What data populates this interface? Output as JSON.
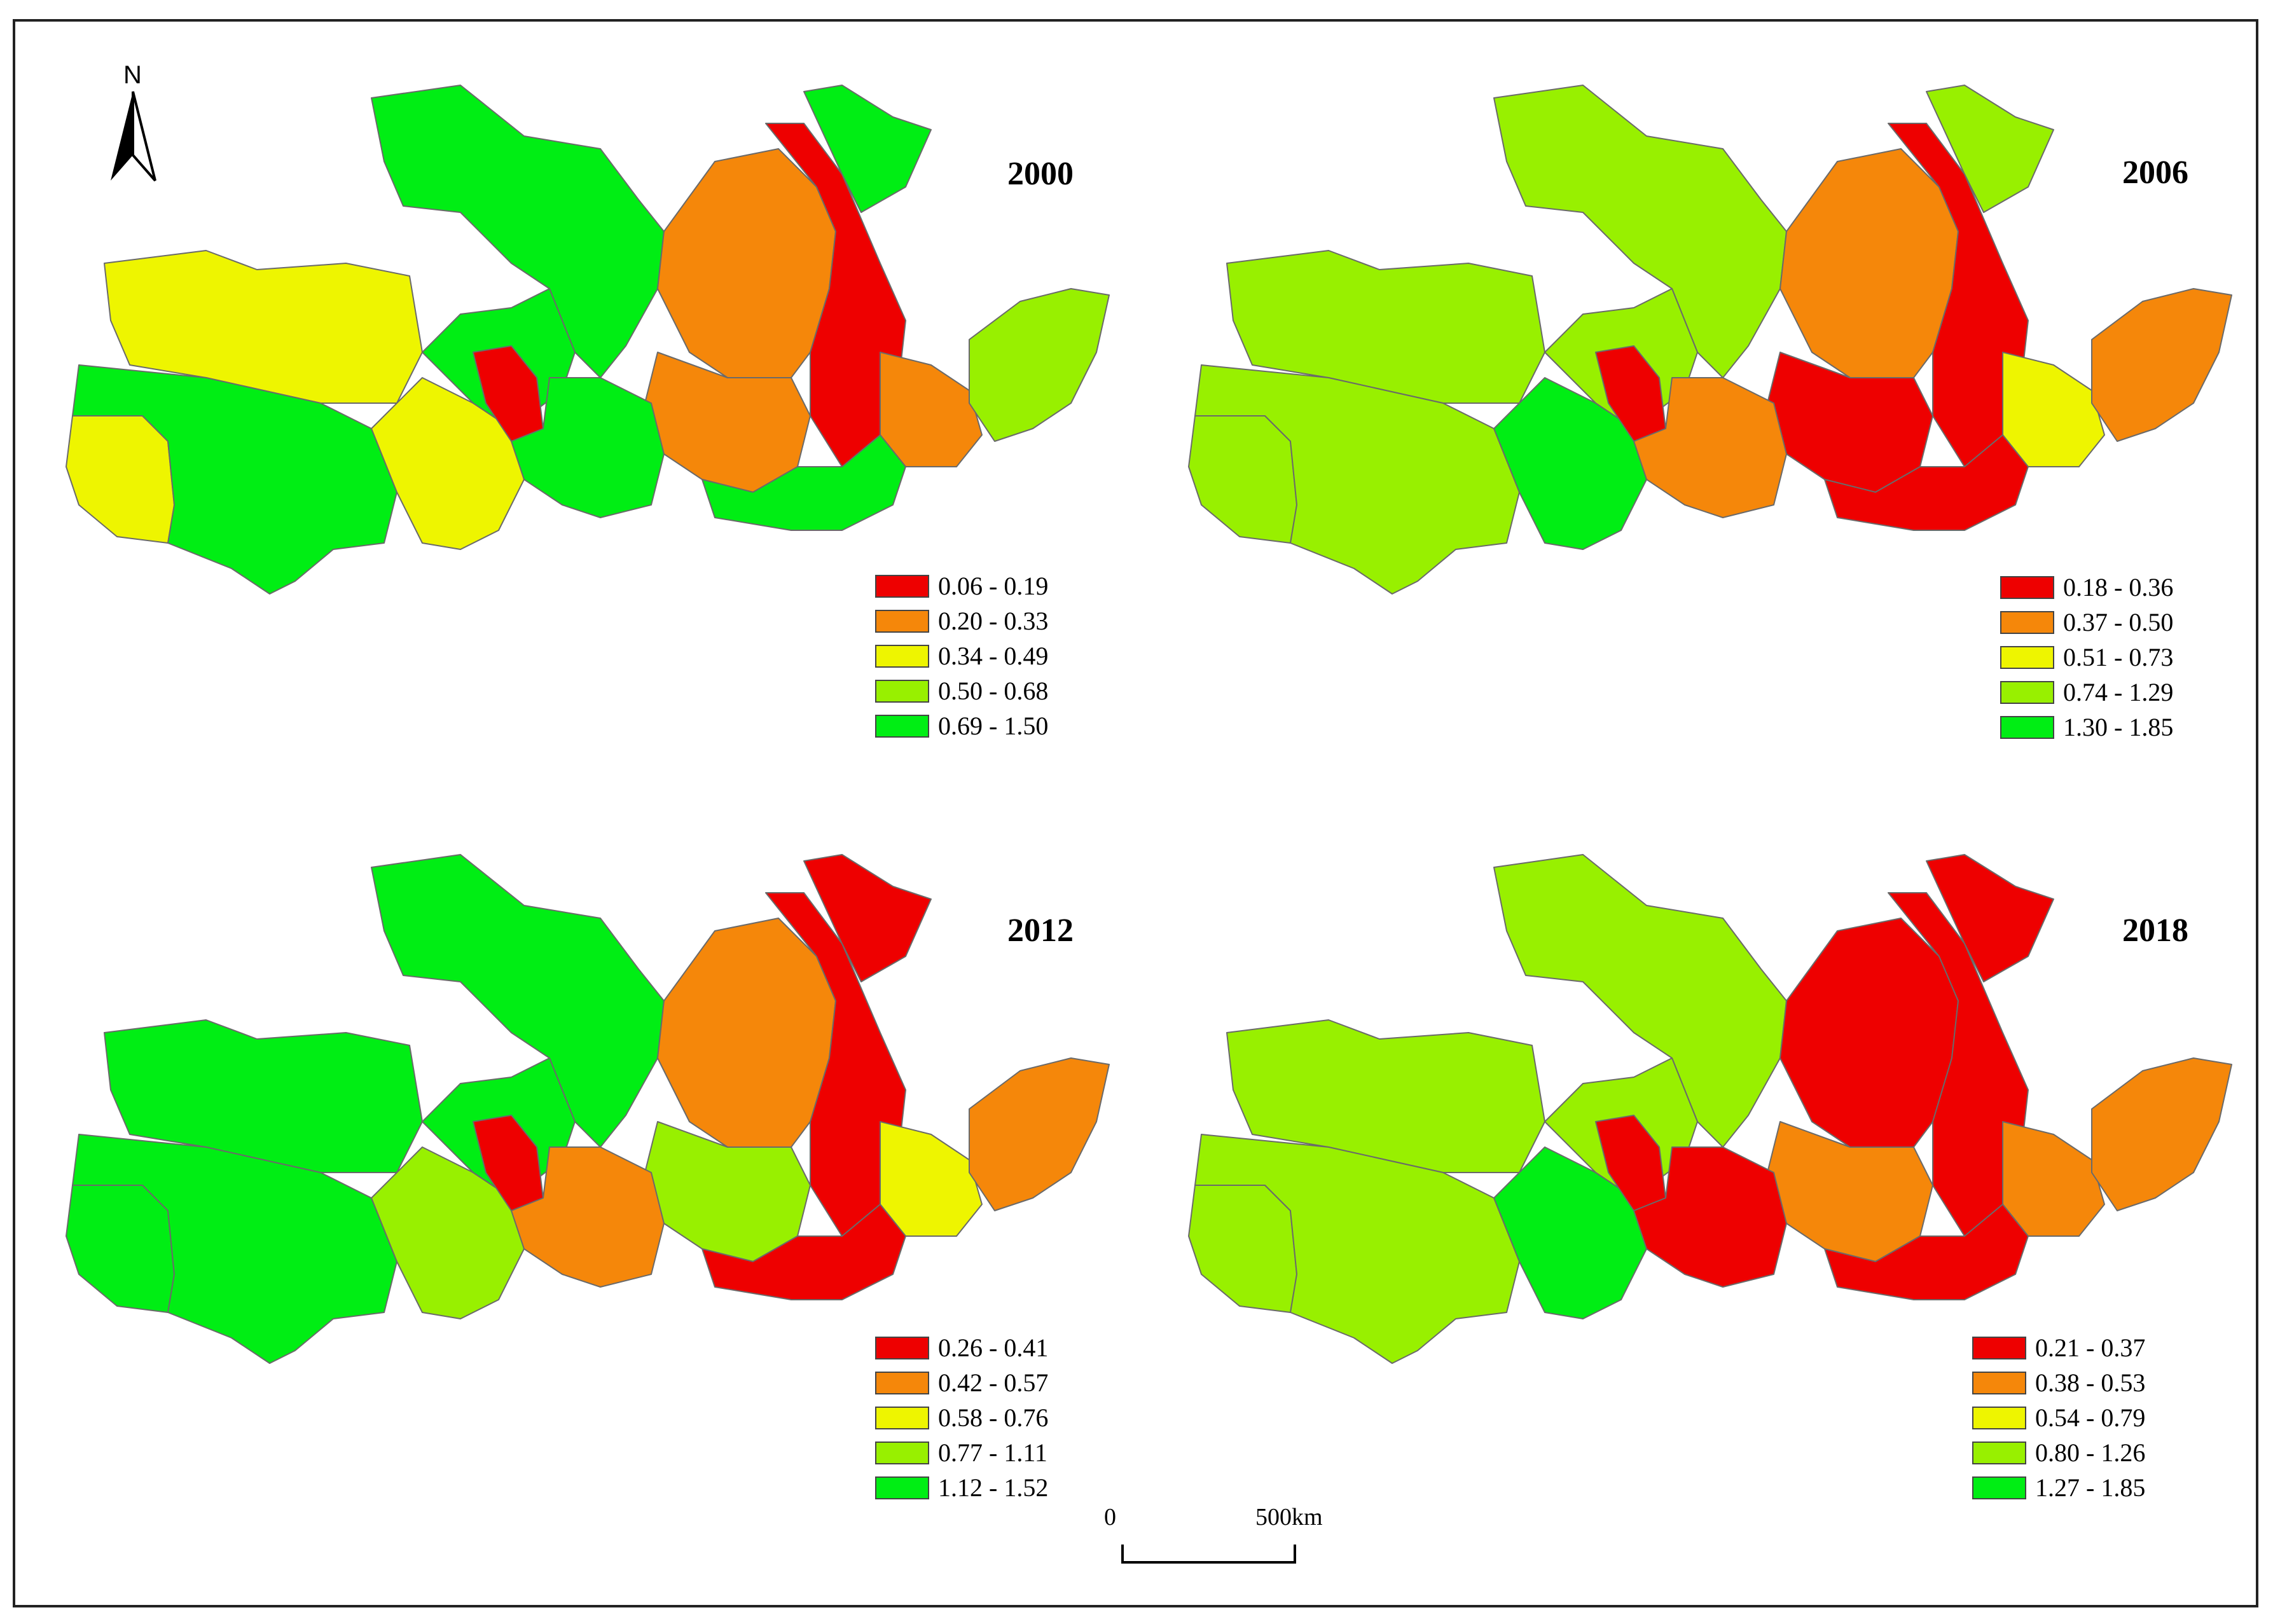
{
  "north": {
    "label": "N"
  },
  "scale": {
    "start": "0",
    "end": "500km"
  },
  "palette": {
    "red": "#ee0000",
    "orange": "#f5870a",
    "yellow": "#eef500",
    "lightgreen": "#98f000",
    "green": "#00ee14",
    "border": "#6a6a6a"
  },
  "panels": [
    {
      "year": "2000",
      "legend": [
        "0.06 - 0.19",
        "0.20 - 0.33",
        "0.34 - 0.49",
        "0.50 - 0.68",
        "0.69 - 1.50"
      ],
      "regions": {
        "northwest": "green",
        "tibet_north": "yellow",
        "tibet_west": "yellow",
        "tibet_south": "green",
        "qinghai_east": "yellow",
        "inner_west": "green",
        "inner_mid": "orange",
        "shaanxi": "orange",
        "shanxi": "red",
        "hebei": "green",
        "gansu_small": "red",
        "central_south": "green",
        "henan": "orange",
        "shandong": "lightgreen",
        "south_strip": "green"
      }
    },
    {
      "year": "2006",
      "legend": [
        "0.18 - 0.36",
        "0.37 - 0.50",
        "0.51 - 0.73",
        "0.74 - 1.29",
        "1.30 - 1.85"
      ],
      "regions": {
        "northwest": "lightgreen",
        "tibet_north": "lightgreen",
        "tibet_west": "lightgreen",
        "tibet_south": "lightgreen",
        "qinghai_east": "green",
        "inner_west": "lightgreen",
        "inner_mid": "orange",
        "shaanxi": "red",
        "shanxi": "red",
        "hebei": "lightgreen",
        "gansu_small": "red",
        "central_south": "orange",
        "henan": "yellow",
        "shandong": "orange",
        "south_strip": "red"
      }
    },
    {
      "year": "2012",
      "legend": [
        "0.26 - 0.41",
        "0.42 - 0.57",
        "0.58 - 0.76",
        "0.77 - 1.11",
        "1.12 - 1.52"
      ],
      "regions": {
        "northwest": "green",
        "tibet_north": "green",
        "tibet_west": "green",
        "tibet_south": "green",
        "qinghai_east": "lightgreen",
        "inner_west": "green",
        "inner_mid": "orange",
        "shaanxi": "lightgreen",
        "shanxi": "red",
        "hebei": "red",
        "gansu_small": "red",
        "central_south": "orange",
        "henan": "yellow",
        "shandong": "orange",
        "south_strip": "red"
      }
    },
    {
      "year": "2018",
      "legend": [
        "0.21 - 0.37",
        "0.38 - 0.53",
        "0.54 - 0.79",
        "0.80 - 1.26",
        "1.27 - 1.85"
      ],
      "regions": {
        "northwest": "lightgreen",
        "tibet_north": "lightgreen",
        "tibet_west": "lightgreen",
        "tibet_south": "lightgreen",
        "qinghai_east": "green",
        "inner_west": "lightgreen",
        "inner_mid": "red",
        "shaanxi": "orange",
        "shanxi": "red",
        "hebei": "red",
        "gansu_small": "red",
        "central_south": "red",
        "henan": "orange",
        "shandong": "orange",
        "south_strip": "red"
      }
    }
  ]
}
